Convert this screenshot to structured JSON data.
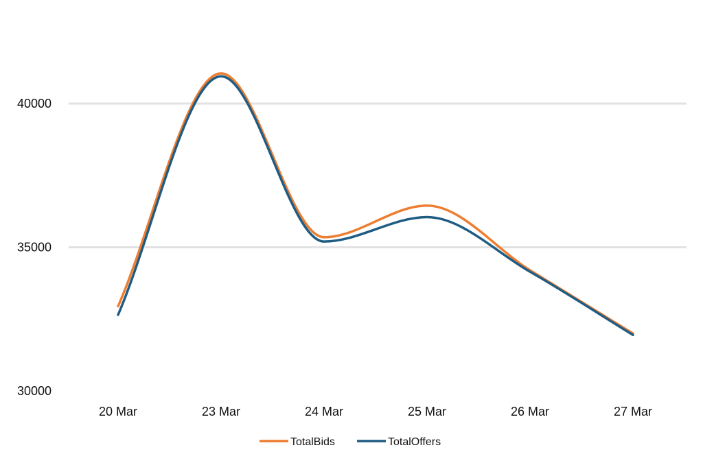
{
  "chart_data": {
    "type": "line",
    "title": "",
    "xlabel": "",
    "ylabel": "",
    "categories": [
      "20 Mar",
      "23 Mar",
      "24 Mar",
      "25 Mar",
      "26 Mar",
      "27 Mar"
    ],
    "series": [
      {
        "name": "TotalBids",
        "color": "#ED7D31",
        "values": [
          32950,
          41050,
          35350,
          36450,
          34200,
          32000
        ]
      },
      {
        "name": "TotalOffers",
        "color": "#1F5C84",
        "values": [
          32650,
          40950,
          35200,
          36050,
          34150,
          31950
        ]
      }
    ],
    "ylim": [
      30000,
      41500
    ],
    "y_ticks": [
      "30000",
      "35000",
      "40000"
    ],
    "grid": "horizontal",
    "legend": "bottom",
    "smooth": true
  }
}
